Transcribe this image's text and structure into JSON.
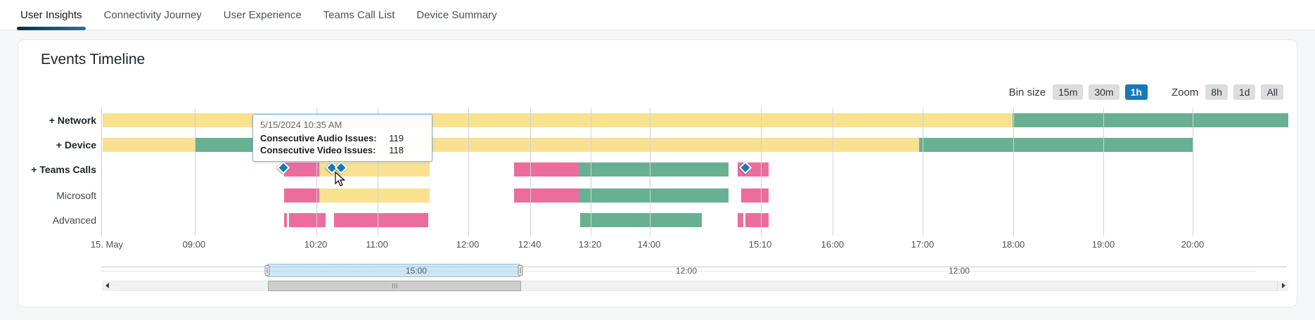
{
  "tabs": {
    "items": [
      {
        "label": "User Insights",
        "active": true
      },
      {
        "label": "Connectivity Journey",
        "active": false
      },
      {
        "label": "User Experience",
        "active": false
      },
      {
        "label": "Teams Call List",
        "active": false
      },
      {
        "label": "Device Summary",
        "active": false
      }
    ]
  },
  "panel": {
    "title": "Events Timeline"
  },
  "controls": {
    "bin_size": {
      "label": "Bin size",
      "options": [
        {
          "label": "15m",
          "active": false
        },
        {
          "label": "30m",
          "active": false
        },
        {
          "label": "1h",
          "active": true
        }
      ]
    },
    "zoom": {
      "label": "Zoom",
      "options": [
        {
          "label": "8h",
          "active": false
        },
        {
          "label": "1d",
          "active": false
        },
        {
          "label": "All",
          "active": false
        }
      ]
    }
  },
  "tooltip": {
    "timestamp": "5/15/2024 10:35 AM",
    "rows": [
      {
        "label": "Consecutive Audio Issues:",
        "value": "119"
      },
      {
        "label": "Consecutive Video Issues:",
        "value": "118"
      }
    ]
  },
  "colors": {
    "accent_blue": "#1878b8",
    "bar_warning_yellow": "#f9e18f",
    "bar_healthy_green": "#68b092",
    "bar_critical_pink": "#eb6d9e",
    "tab_underline_start": "#0b2e44",
    "tab_underline_end": "#2b7193"
  },
  "chart_data": {
    "type": "timeline",
    "title": "Events Timeline",
    "time_axis": {
      "date": "15. May 2024",
      "visible_start": "08:00",
      "visible_end": "21:00"
    },
    "ticks": [
      {
        "label": "15. May",
        "pct": -0.9,
        "align": "left"
      },
      {
        "label": "09:00",
        "pct": 7.81
      },
      {
        "label": "10:20",
        "pct": 18.06
      },
      {
        "label": "11:00",
        "pct": 23.21
      },
      {
        "label": "12:00",
        "pct": 30.85
      },
      {
        "label": "12:40",
        "pct": 36.06
      },
      {
        "label": "13:20",
        "pct": 41.15
      },
      {
        "label": "14:00",
        "pct": 46.12
      },
      {
        "label": "15:10",
        "pct": 55.48
      },
      {
        "label": "16:00",
        "pct": 61.57
      },
      {
        "label": "17:00",
        "pct": 69.15
      },
      {
        "label": "18:00",
        "pct": 76.79
      },
      {
        "label": "19:00",
        "pct": 84.37
      },
      {
        "label": "20:00",
        "pct": 91.89
      }
    ],
    "rows": [
      {
        "label": "+ Network",
        "group": true,
        "segments": [
          {
            "status": "warning",
            "start": "08:00",
            "end": "18:00",
            "left_pct": 0.06,
            "width_pct": 76.67
          },
          {
            "status": "healthy",
            "start": "18:00",
            "end": "21:00",
            "left_pct": 76.73,
            "width_pct": 23.21
          }
        ]
      },
      {
        "label": "+ Device",
        "group": true,
        "segments": [
          {
            "status": "warning",
            "start": "08:00",
            "end": "09:00",
            "left_pct": 0.06,
            "width_pct": 7.81
          },
          {
            "status": "healthy",
            "start": "09:00",
            "end": "09:40",
            "left_pct": 7.87,
            "width_pct": 4.8
          },
          {
            "status": "warning",
            "start": "09:40",
            "end": "17:00",
            "left_pct": 12.67,
            "width_pct": 56.19
          },
          {
            "status": "healthy",
            "start": "17:00",
            "end": "20:00",
            "left_pct": 68.86,
            "width_pct": 23.09
          }
        ]
      },
      {
        "label": "+ Teams Calls",
        "group": true,
        "segments": [
          {
            "status": "critical",
            "start": "10:00",
            "end": "10:22",
            "left_pct": 15.33,
            "width_pct": 2.96
          },
          {
            "status": "warning",
            "start": "10:22",
            "end": "11:35",
            "left_pct": 18.29,
            "width_pct": 9.3
          },
          {
            "status": "critical",
            "start": "12:31",
            "end": "13:14",
            "left_pct": 34.7,
            "width_pct": 5.45
          },
          {
            "status": "healthy",
            "start": "13:14",
            "end": "14:53",
            "left_pct": 40.14,
            "width_pct": 12.67
          },
          {
            "status": "critical",
            "start": "14:59",
            "end": "15:20",
            "left_pct": 53.58,
            "width_pct": 2.6
          }
        ]
      },
      {
        "label": "Microsoft",
        "group": false,
        "segments": [
          {
            "status": "critical",
            "start": "10:00",
            "end": "10:22",
            "left_pct": 15.33,
            "width_pct": 2.96
          },
          {
            "status": "warning",
            "start": "10:22",
            "end": "11:35",
            "left_pct": 18.29,
            "width_pct": 9.3
          },
          {
            "status": "critical",
            "start": "12:31",
            "end": "13:14",
            "left_pct": 34.7,
            "width_pct": 5.45
          },
          {
            "status": "healthy",
            "start": "13:14",
            "end": "14:53",
            "left_pct": 40.14,
            "width_pct": 12.67
          },
          {
            "status": "critical",
            "start": "15:02",
            "end": "15:20",
            "left_pct": 53.88,
            "width_pct": 2.31
          }
        ]
      },
      {
        "label": "Advanced",
        "group": false,
        "segments": [
          {
            "status": "critical",
            "start": "10:00",
            "end": "10:01",
            "left_pct": 15.33,
            "width_pct": 0.24
          },
          {
            "status": "critical",
            "start": "10:02",
            "end": "10:26",
            "left_pct": 15.75,
            "width_pct": 3.08
          },
          {
            "status": "critical",
            "start": "10:32",
            "end": "11:34",
            "left_pct": 19.54,
            "width_pct": 7.93
          },
          {
            "status": "healthy",
            "start": "13:15",
            "end": "14:36",
            "left_pct": 40.26,
            "width_pct": 10.3
          },
          {
            "status": "critical",
            "start": "14:59",
            "end": "15:03",
            "left_pct": 53.58,
            "width_pct": 0.47
          },
          {
            "status": "critical",
            "start": "15:04",
            "end": "15:20",
            "left_pct": 54.23,
            "width_pct": 1.95
          }
        ]
      }
    ],
    "markers": [
      {
        "row": "+ Teams Calls",
        "time": "09:59",
        "pct": 15.27
      },
      {
        "row": "+ Teams Calls",
        "time": "10:31",
        "pct": 19.36
      },
      {
        "row": "+ Teams Calls",
        "time": "10:35",
        "pct": 20.13
      },
      {
        "row": "+ Teams Calls",
        "time": "15:04",
        "pct": 54.23
      }
    ]
  },
  "navigator": {
    "selection": {
      "label": "15:00",
      "left_pct": 13.97,
      "width_pct": 21.31,
      "label_pct": 26.52
    },
    "track_labels": [
      {
        "label": "12:00",
        "pct": 49.26
      },
      {
        "label": "12:00",
        "pct": 72.23
      }
    ]
  },
  "scrollbar": {
    "thumb": {
      "left_pct": 13.94,
      "width_pct": 21.35
    }
  }
}
